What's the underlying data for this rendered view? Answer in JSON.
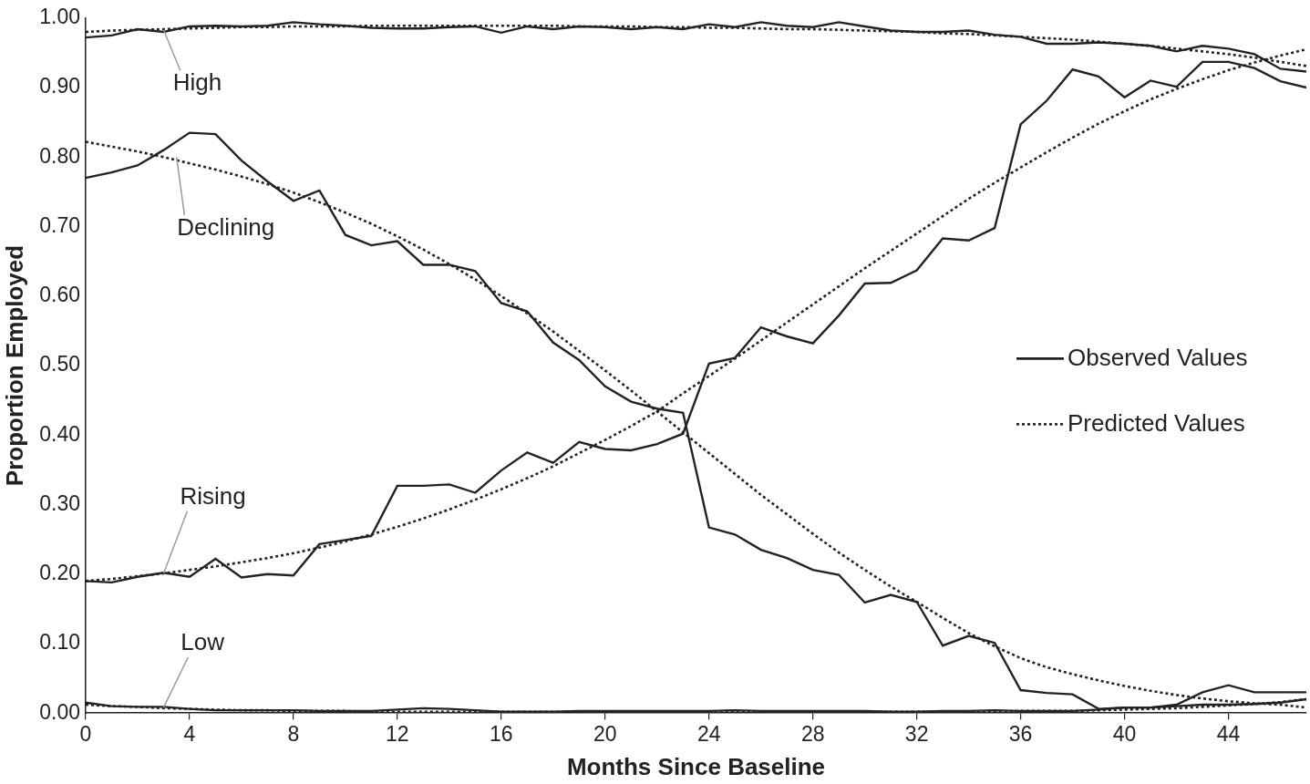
{
  "chart_data": {
    "type": "line",
    "x_label": "Months Since Baseline",
    "y_label": "Proportion Employed",
    "x": [
      0,
      1,
      2,
      3,
      4,
      5,
      6,
      7,
      8,
      9,
      10,
      11,
      12,
      13,
      14,
      15,
      16,
      17,
      18,
      19,
      20,
      21,
      22,
      23,
      24,
      25,
      26,
      27,
      28,
      29,
      30,
      31,
      32,
      33,
      34,
      35,
      36,
      37,
      38,
      39,
      40,
      41,
      42,
      43,
      44,
      45,
      46,
      47
    ],
    "xlim": [
      0,
      47
    ],
    "xticks": [
      0,
      4,
      8,
      12,
      16,
      20,
      24,
      28,
      32,
      36,
      40,
      44
    ],
    "ylim": [
      0,
      1
    ],
    "yticks": [
      {
        "value": 0,
        "label": "0.00"
      },
      {
        "value": 0.1,
        "label": "0.10"
      },
      {
        "value": 0.2,
        "label": "0.20"
      },
      {
        "value": 0.3,
        "label": "0.30"
      },
      {
        "value": 0.4,
        "label": "0.40"
      },
      {
        "value": 0.5,
        "label": "0.50"
      },
      {
        "value": 0.6,
        "label": "0.60"
      },
      {
        "value": 0.7,
        "label": "0.70"
      },
      {
        "value": 0.8,
        "label": "0.80"
      },
      {
        "value": 0.9,
        "label": "0.90"
      },
      {
        "value": 1,
        "label": "1.00"
      }
    ],
    "grid": false,
    "legend": "right",
    "groups": [
      {
        "name": "High",
        "label_x": 4.3,
        "label_y": 0.905,
        "point_x": 3,
        "point_y": 0.983
      },
      {
        "name": "Declining",
        "label_x": 5.4,
        "label_y": 0.697,
        "point_x": 3.5,
        "point_y": 0.8
      },
      {
        "name": "Rising",
        "label_x": 4.9,
        "label_y": 0.31,
        "point_x": 3,
        "point_y": 0.201
      },
      {
        "name": "Low",
        "label_x": 4.5,
        "label_y": 0.1,
        "point_x": 3,
        "point_y": 0.008
      }
    ],
    "series": [
      {
        "name": "Observed Values",
        "line_style": "solid",
        "color": "#222222",
        "values": {
          "High": [
            0.972,
            0.975,
            0.984,
            0.98,
            0.988,
            0.989,
            0.988,
            0.989,
            0.994,
            0.991,
            0.989,
            0.986,
            0.985,
            0.985,
            0.987,
            0.988,
            0.979,
            0.988,
            0.984,
            0.988,
            0.987,
            0.984,
            0.987,
            0.984,
            0.991,
            0.987,
            0.994,
            0.989,
            0.987,
            0.994,
            0.988,
            0.982,
            0.98,
            0.98,
            0.982,
            0.976,
            0.973,
            0.963,
            0.963,
            0.965,
            0.963,
            0.96,
            0.952,
            0.96,
            0.956,
            0.948,
            0.927,
            0.923
          ],
          "Declining": [
            0.77,
            0.778,
            0.788,
            0.81,
            0.835,
            0.833,
            0.795,
            0.765,
            0.737,
            0.752,
            0.688,
            0.673,
            0.679,
            0.645,
            0.645,
            0.636,
            0.59,
            0.578,
            0.533,
            0.508,
            0.47,
            0.448,
            0.438,
            0.432,
            0.267,
            0.257,
            0.235,
            0.223,
            0.206,
            0.199,
            0.159,
            0.17,
            0.16,
            0.097,
            0.111,
            0.101,
            0.033,
            0.029,
            0.027,
            0.006,
            0.008,
            0.008,
            0.012,
            0.03,
            0.04,
            0.03,
            0.03,
            0.03
          ],
          "Rising": [
            0.19,
            0.188,
            0.196,
            0.202,
            0.196,
            0.222,
            0.195,
            0.2,
            0.198,
            0.243,
            0.249,
            0.255,
            0.327,
            0.327,
            0.329,
            0.317,
            0.349,
            0.375,
            0.36,
            0.39,
            0.38,
            0.378,
            0.387,
            0.402,
            0.503,
            0.511,
            0.555,
            0.542,
            0.532,
            0.572,
            0.618,
            0.619,
            0.637,
            0.683,
            0.68,
            0.698,
            0.847,
            0.881,
            0.926,
            0.916,
            0.886,
            0.91,
            0.901,
            0.937,
            0.937,
            0.928,
            0.909,
            0.9
          ],
          "Low": [
            0.015,
            0.01,
            0.009,
            0.009,
            0.006,
            0.004,
            0.004,
            0.004,
            0.004,
            0.003,
            0.003,
            0.003,
            0.005,
            0.007,
            0.006,
            0.004,
            0.002,
            0.002,
            0.002,
            0.003,
            0.003,
            0.003,
            0.003,
            0.003,
            0.003,
            0.004,
            0.003,
            0.003,
            0.003,
            0.003,
            0.003,
            0.002,
            0.002,
            0.003,
            0.003,
            0.004,
            0.003,
            0.003,
            0.003,
            0.005,
            0.008,
            0.008,
            0.01,
            0.012,
            0.012,
            0.013,
            0.015,
            0.02
          ]
        }
      },
      {
        "name": "Predicted Values",
        "line_style": "dotted",
        "color": "#222222",
        "values": {
          "High": [
            0.98,
            0.982,
            0.983,
            0.984,
            0.985,
            0.986,
            0.987,
            0.987,
            0.988,
            0.988,
            0.988,
            0.989,
            0.989,
            0.989,
            0.989,
            0.989,
            0.989,
            0.989,
            0.989,
            0.988,
            0.988,
            0.988,
            0.987,
            0.987,
            0.986,
            0.986,
            0.985,
            0.984,
            0.984,
            0.983,
            0.982,
            0.981,
            0.98,
            0.978,
            0.977,
            0.975,
            0.973,
            0.971,
            0.969,
            0.966,
            0.963,
            0.96,
            0.956,
            0.952,
            0.948,
            0.943,
            0.937,
            0.931
          ],
          "Declining": [
            0.822,
            0.815,
            0.808,
            0.8,
            0.791,
            0.782,
            0.772,
            0.761,
            0.749,
            0.735,
            0.72,
            0.704,
            0.686,
            0.667,
            0.646,
            0.624,
            0.6,
            0.575,
            0.549,
            0.521,
            0.493,
            0.464,
            0.434,
            0.404,
            0.374,
            0.344,
            0.314,
            0.286,
            0.258,
            0.231,
            0.206,
            0.182,
            0.16,
            0.137,
            0.115,
            0.096,
            0.079,
            0.066,
            0.056,
            0.047,
            0.039,
            0.032,
            0.026,
            0.021,
            0.017,
            0.014,
            0.012,
            0.008
          ],
          "Rising": [
            0.19,
            0.193,
            0.197,
            0.201,
            0.206,
            0.211,
            0.217,
            0.223,
            0.23,
            0.238,
            0.247,
            0.257,
            0.268,
            0.28,
            0.293,
            0.307,
            0.322,
            0.338,
            0.355,
            0.374,
            0.393,
            0.413,
            0.434,
            0.46,
            0.485,
            0.51,
            0.536,
            0.562,
            0.588,
            0.614,
            0.64,
            0.665,
            0.69,
            0.715,
            0.74,
            0.763,
            0.785,
            0.807,
            0.828,
            0.848,
            0.866,
            0.883,
            0.898,
            0.912,
            0.925,
            0.936,
            0.946,
            0.955
          ],
          "Low": [
            0.012,
            0.01,
            0.009,
            0.007,
            0.006,
            0.005,
            0.004,
            0.004,
            0.003,
            0.003,
            0.003,
            0.002,
            0.002,
            0.002,
            0.002,
            0.002,
            0.002,
            0.002,
            0.002,
            0.002,
            0.002,
            0.002,
            0.002,
            0.002,
            0.002,
            0.002,
            0.002,
            0.002,
            0.002,
            0.002,
            0.002,
            0.002,
            0.002,
            0.002,
            0.002,
            0.002,
            0.003,
            0.003,
            0.003,
            0.004,
            0.005,
            0.006,
            0.007,
            0.009,
            0.011,
            0.013,
            0.016,
            0.02
          ]
        }
      }
    ]
  }
}
